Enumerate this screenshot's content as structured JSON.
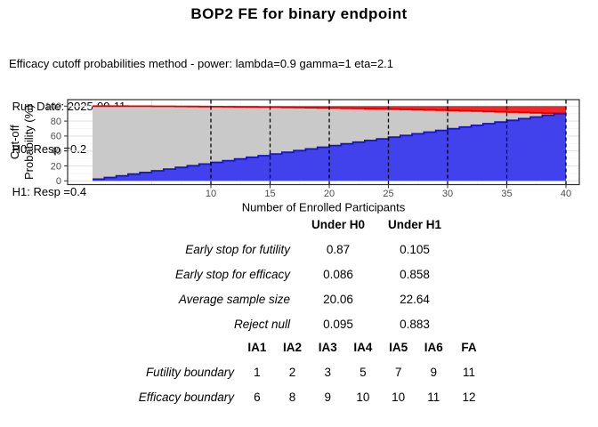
{
  "header": {
    "title": "BOP2 FE for binary endpoint",
    "subtitle_lines": [
      "Efficacy cutoff probabilities method - power: lambda=0.9 gamma=1 eta=2.1",
      " Run Date: 2025-09-11",
      " H0: Resp =0.2",
      " H1: Resp =0.4"
    ]
  },
  "chart_data": {
    "type": "area",
    "xlabel": "Number of Enrolled Participants",
    "ylabel": "Cut-off Probability (%)",
    "ylabel_lines": [
      "Cut-off",
      "Probability (%)"
    ],
    "x_ticks": [
      10,
      15,
      20,
      25,
      30,
      35,
      40
    ],
    "y_ticks": [
      0,
      20,
      40,
      60,
      80,
      100
    ],
    "xlim": [
      0,
      41
    ],
    "ylim": [
      0,
      100
    ],
    "grid": true,
    "legend": "none",
    "interim_analysis_lines": [
      10,
      15,
      20,
      25,
      30,
      35,
      40
    ],
    "n": [
      1,
      2,
      3,
      4,
      5,
      6,
      7,
      8,
      9,
      10,
      11,
      12,
      13,
      14,
      15,
      16,
      17,
      18,
      19,
      20,
      21,
      22,
      23,
      24,
      25,
      26,
      27,
      28,
      29,
      30,
      31,
      32,
      33,
      34,
      35,
      36,
      37,
      38,
      39,
      40
    ],
    "series": [
      {
        "name": "futility_cutoff_pct",
        "values": [
          2.25,
          4.5,
          6.75,
          9,
          11.25,
          13.5,
          15.75,
          18,
          20.25,
          22.5,
          24.75,
          27,
          29.25,
          31.5,
          33.75,
          36,
          38.25,
          40.5,
          42.75,
          45,
          47.25,
          49.5,
          51.75,
          54,
          56.25,
          58.5,
          60.75,
          63,
          65.25,
          67.5,
          69.75,
          72,
          74.25,
          76.5,
          78.75,
          81,
          83.25,
          85.5,
          87.75,
          90
        ]
      },
      {
        "name": "efficacy_cutoff_pct",
        "values": [
          100,
          99.98,
          99.96,
          99.92,
          99.87,
          99.81,
          99.74,
          99.66,
          99.56,
          99.46,
          99.33,
          99.2,
          99.06,
          98.9,
          98.73,
          98.54,
          98.34,
          98.13,
          97.91,
          97.67,
          97.42,
          97.15,
          96.87,
          96.58,
          96.27,
          95.95,
          95.62,
          95.27,
          94.91,
          94.53,
          94.15,
          93.74,
          93.32,
          92.89,
          92.44,
          91.99,
          91.51,
          91.02,
          90.52,
          90
        ]
      }
    ],
    "colors": {
      "futility_fill": "#4242ec",
      "futility_line": "#1414d2",
      "efficacy_fill": "#f22626",
      "efficacy_line": "#e00000",
      "between_fill": "#c9c9c9",
      "grid_major": "#e3e3e3",
      "grid_minor": "#f4f4f4",
      "tick_label": "#4d4d4d",
      "panel_border": "#2e2e2e",
      "interim_line": "#000000"
    }
  },
  "op_table": {
    "col_headers": [
      "Under H0",
      "Under H1"
    ],
    "rows": [
      {
        "label": "Early stop for futility",
        "h0": "0.87",
        "h1": "0.105"
      },
      {
        "label": "Early stop for efficacy",
        "h0": "0.086",
        "h1": "0.858"
      },
      {
        "label": "Average sample size",
        "h0": "20.06",
        "h1": "22.64"
      },
      {
        "label": "Reject null",
        "h0": "0.095",
        "h1": "0.883"
      }
    ]
  },
  "boundary_table": {
    "col_headers": [
      "IA1",
      "IA2",
      "IA3",
      "IA4",
      "IA5",
      "IA6",
      "FA"
    ],
    "rows": [
      {
        "label": "Futility boundary",
        "values": [
          "1",
          "2",
          "3",
          "5",
          "7",
          "9",
          "11"
        ]
      },
      {
        "label": "Efficacy boundary",
        "values": [
          "6",
          "8",
          "9",
          "10",
          "10",
          "11",
          "12"
        ]
      }
    ]
  }
}
